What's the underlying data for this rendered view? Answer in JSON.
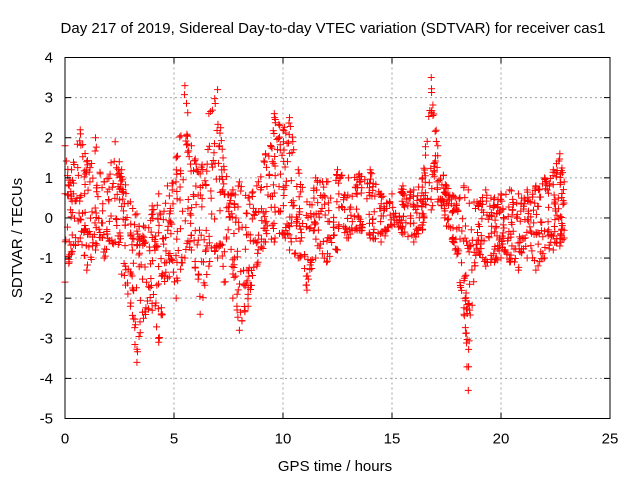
{
  "chart_data": {
    "type": "scatter",
    "title": "Day 217 of 2019, Sidereal Day-to-day VTEC variation (SDTVAR) for receiver cas1",
    "xlabel": "GPS time / hours",
    "ylabel": "SDTVAR / TECUs",
    "xlim": [
      0,
      25
    ],
    "ylim": [
      -5,
      4
    ],
    "xticks": [
      0,
      5,
      10,
      15,
      20,
      25
    ],
    "yticks": [
      -5,
      -4,
      -3,
      -2,
      -1,
      0,
      1,
      2,
      3,
      4
    ],
    "xtick_labels": [
      "0",
      "5",
      "10",
      "15",
      "20",
      "25"
    ],
    "ytick_labels": [
      "-5",
      "-4",
      "-3",
      "-2",
      "-1",
      "0",
      "1",
      "2",
      "3",
      "4"
    ],
    "grid": true,
    "marker": "+",
    "color": "#ff0000",
    "series": [
      {
        "name": "SDTVAR",
        "envelope": [
          {
            "x": 0.0,
            "min": -1.6,
            "max": 1.8
          },
          {
            "x": 0.3,
            "min": -0.9,
            "max": 1.2
          },
          {
            "x": 0.7,
            "min": -0.5,
            "max": 2.2
          },
          {
            "x": 1.0,
            "min": -1.3,
            "max": 1.4
          },
          {
            "x": 1.4,
            "min": -0.8,
            "max": 2.0
          },
          {
            "x": 1.8,
            "min": -1.0,
            "max": 0.9
          },
          {
            "x": 2.3,
            "min": -0.6,
            "max": 1.9
          },
          {
            "x": 2.6,
            "min": -1.4,
            "max": 1.2
          },
          {
            "x": 3.0,
            "min": -2.2,
            "max": 0.4
          },
          {
            "x": 3.3,
            "min": -3.6,
            "max": 0.1
          },
          {
            "x": 3.6,
            "min": -2.5,
            "max": -0.2
          },
          {
            "x": 4.0,
            "min": -2.3,
            "max": 0.3
          },
          {
            "x": 4.3,
            "min": -3.1,
            "max": 0.6
          },
          {
            "x": 4.7,
            "min": -1.5,
            "max": 0.8
          },
          {
            "x": 5.1,
            "min": -2.0,
            "max": 1.5
          },
          {
            "x": 5.5,
            "min": -1.0,
            "max": 3.3
          },
          {
            "x": 5.8,
            "min": -0.8,
            "max": 1.8
          },
          {
            "x": 6.2,
            "min": -2.4,
            "max": 1.1
          },
          {
            "x": 6.6,
            "min": -1.2,
            "max": 2.6
          },
          {
            "x": 7.0,
            "min": -1.0,
            "max": 3.2
          },
          {
            "x": 7.3,
            "min": -1.6,
            "max": 1.2
          },
          {
            "x": 7.7,
            "min": -2.0,
            "max": 0.7
          },
          {
            "x": 8.0,
            "min": -2.8,
            "max": 0.9
          },
          {
            "x": 8.4,
            "min": -2.2,
            "max": 0.5
          },
          {
            "x": 8.8,
            "min": -1.2,
            "max": 0.8
          },
          {
            "x": 9.2,
            "min": -0.6,
            "max": 1.6
          },
          {
            "x": 9.6,
            "min": -0.6,
            "max": 2.6
          },
          {
            "x": 10.0,
            "min": -0.4,
            "max": 2.2
          },
          {
            "x": 10.3,
            "min": -0.8,
            "max": 2.5
          },
          {
            "x": 10.7,
            "min": -1.0,
            "max": 1.2
          },
          {
            "x": 11.1,
            "min": -1.8,
            "max": 0.4
          },
          {
            "x": 11.5,
            "min": -1.0,
            "max": 1.0
          },
          {
            "x": 12.0,
            "min": -1.1,
            "max": 0.9
          },
          {
            "x": 12.5,
            "min": -0.8,
            "max": 1.2
          },
          {
            "x": 13.0,
            "min": -0.5,
            "max": 1.0
          },
          {
            "x": 13.5,
            "min": -0.3,
            "max": 1.1
          },
          {
            "x": 14.0,
            "min": -0.5,
            "max": 1.2
          },
          {
            "x": 14.5,
            "min": -0.6,
            "max": 0.6
          },
          {
            "x": 15.0,
            "min": -0.2,
            "max": 0.6
          },
          {
            "x": 15.5,
            "min": -0.4,
            "max": 0.8
          },
          {
            "x": 16.0,
            "min": -0.6,
            "max": 0.7
          },
          {
            "x": 16.4,
            "min": -0.3,
            "max": 1.0
          },
          {
            "x": 16.8,
            "min": 0.2,
            "max": 3.5
          },
          {
            "x": 17.1,
            "min": 0.4,
            "max": 1.8
          },
          {
            "x": 17.5,
            "min": -0.2,
            "max": 0.8
          },
          {
            "x": 17.9,
            "min": -0.8,
            "max": 0.5
          },
          {
            "x": 18.3,
            "min": -2.4,
            "max": 0.8
          },
          {
            "x": 18.5,
            "min": -4.3,
            "max": 0.7
          },
          {
            "x": 18.9,
            "min": -0.8,
            "max": 0.4
          },
          {
            "x": 19.3,
            "min": -1.2,
            "max": 0.7
          },
          {
            "x": 19.7,
            "min": -1.1,
            "max": 0.5
          },
          {
            "x": 20.0,
            "min": -1.0,
            "max": 0.6
          },
          {
            "x": 20.4,
            "min": -1.1,
            "max": 0.7
          },
          {
            "x": 20.8,
            "min": -1.3,
            "max": 0.6
          },
          {
            "x": 21.2,
            "min": -1.0,
            "max": 0.7
          },
          {
            "x": 21.6,
            "min": -1.3,
            "max": 0.8
          },
          {
            "x": 22.0,
            "min": -1.0,
            "max": 1.0
          },
          {
            "x": 22.4,
            "min": -0.8,
            "max": 1.2
          },
          {
            "x": 22.7,
            "min": -0.7,
            "max": 1.6
          },
          {
            "x": 22.9,
            "min": -0.5,
            "max": 0.9
          }
        ]
      }
    ]
  }
}
